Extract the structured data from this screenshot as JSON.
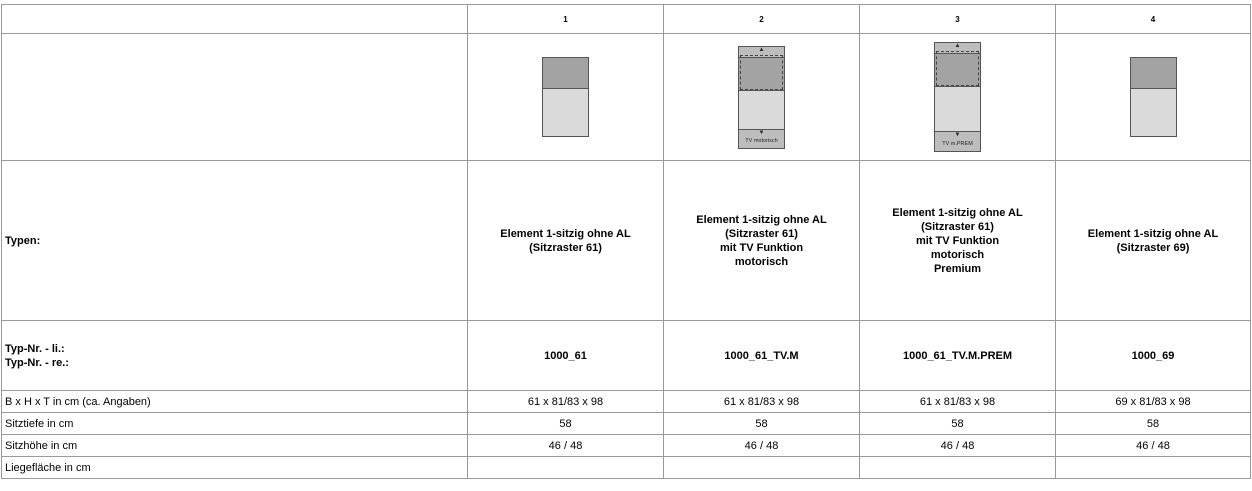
{
  "columns": [
    "1",
    "2",
    "3",
    "4"
  ],
  "images": {
    "col2_caption": "TV motorisch",
    "col3_caption": "TV m.PREM"
  },
  "rows": {
    "typen": {
      "label": "Typen:",
      "values": [
        [
          "Element 1-sitzig ohne AL",
          "(Sitzraster 61)"
        ],
        [
          "Element 1-sitzig ohne AL",
          "(Sitzraster 61)",
          "mit TV Funktion",
          "motorisch"
        ],
        [
          "Element 1-sitzig ohne AL",
          "(Sitzraster 61)",
          "mit TV Funktion",
          "motorisch",
          "Premium"
        ],
        [
          "Element 1-sitzig ohne AL",
          "(Sitzraster 69)"
        ]
      ]
    },
    "typnr": {
      "label_left": "Typ-Nr. - li.:",
      "label_right": "Typ-Nr. - re.:",
      "values": [
        "1000_61",
        "1000_61_TV.M",
        "1000_61_TV.M.PREM",
        "1000_69"
      ]
    },
    "bht": {
      "label": "B x H x T in cm (ca. Angaben)",
      "values": [
        "61 x 81/83 x 98",
        "61 x 81/83 x 98",
        "61 x 81/83 x 98",
        "69 x 81/83 x 98"
      ]
    },
    "sitztiefe": {
      "label": "Sitztiefe in cm",
      "values": [
        "58",
        "58",
        "58",
        "58"
      ]
    },
    "sitzhoehe": {
      "label": "Sitzhöhe in cm",
      "values": [
        "46 / 48",
        "46 / 48",
        "46 / 48",
        "46 / 48"
      ]
    },
    "liegeflaeche": {
      "label": "Liegefläche in cm",
      "values": [
        "",
        "",
        "",
        ""
      ]
    }
  }
}
